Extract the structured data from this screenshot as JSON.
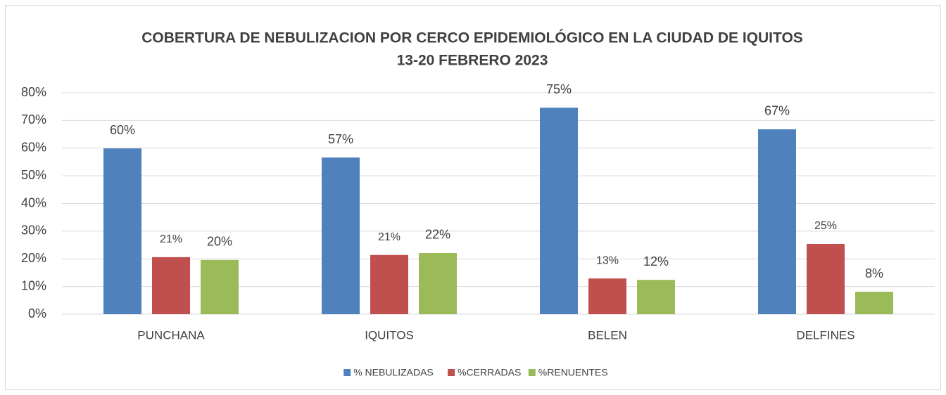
{
  "chart_data": {
    "type": "bar",
    "title": "COBERTURA DE NEBULIZACION POR CERCO EPIDEMIOLÓGICO EN LA CIUDAD DE IQUITOS",
    "subtitle": "13-20 FEBRERO 2023",
    "categories": [
      "PUNCHANA",
      "IQUITOS",
      "BELEN",
      "DELFINES"
    ],
    "series": [
      {
        "name": "% NEBULIZADAS",
        "color": "#4f81bd",
        "values": [
          59.9,
          56.6,
          74.6,
          66.8
        ],
        "value_labels": [
          "60%",
          "57%",
          "75%",
          "67%"
        ]
      },
      {
        "name": "%CERRADAS",
        "color": "#c0504d",
        "values": [
          20.6,
          21.4,
          12.9,
          25.4
        ],
        "value_labels": [
          "21%",
          "21%",
          "13%",
          "25%"
        ]
      },
      {
        "name": "%RENUENTES",
        "color": "#9bbb59",
        "values": [
          19.6,
          22.1,
          12.4,
          8.1
        ],
        "value_labels": [
          "20%",
          "22%",
          "12%",
          "8%"
        ]
      }
    ],
    "ylim": [
      0,
      80
    ],
    "yticks": [
      {
        "value": 0,
        "label": "0%"
      },
      {
        "value": 10,
        "label": "10%"
      },
      {
        "value": 20,
        "label": "20%"
      },
      {
        "value": 30,
        "label": "30%"
      },
      {
        "value": 40,
        "label": "40%"
      },
      {
        "value": 50,
        "label": "50%"
      },
      {
        "value": 60,
        "label": "60%"
      },
      {
        "value": 70,
        "label": "70%"
      },
      {
        "value": 80,
        "label": "80%"
      }
    ],
    "grid": true,
    "legend": "bottom"
  }
}
